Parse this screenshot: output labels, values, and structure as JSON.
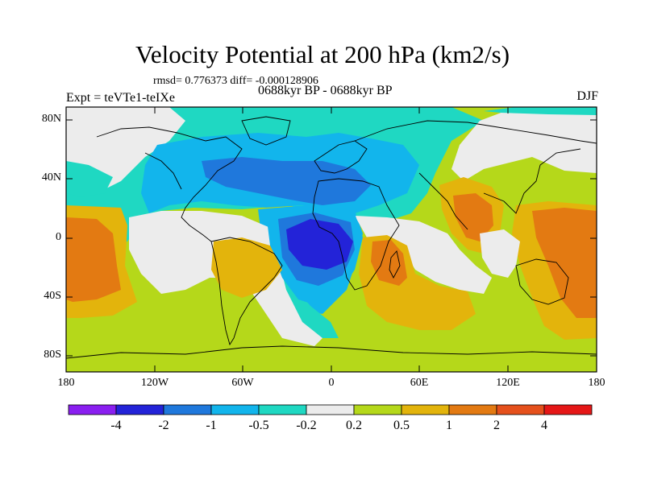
{
  "figure": {
    "title": "Velocity Potential at 200 hPa (km2/s)",
    "stats_line": "rmsd= 0.776373 diff= -0.000128906",
    "period_line": "0688kyr BP - 0688kyr BP",
    "experiment": "Expt = teVTe1-teIXe",
    "season": "DJF"
  },
  "axes": {
    "lat_labels": [
      "80N",
      "40N",
      "0",
      "40S",
      "80S"
    ],
    "lon_labels": [
      "180",
      "120W",
      "60W",
      "0",
      "60E",
      "120E",
      "180"
    ]
  },
  "colorbar": {
    "labels": [
      "-4",
      "-2",
      "-1",
      "-0.5",
      "-0.2",
      "0.2",
      "0.5",
      "1",
      "2",
      "4"
    ],
    "colors": [
      "#8a1ff0",
      "#2323d8",
      "#1f78dc",
      "#12b5ec",
      "#1fd8c2",
      "#ececec",
      "#b5d81a",
      "#e3b40c",
      "#e37a12",
      "#e5501c",
      "#e51717"
    ]
  },
  "palette": {
    "gray": "#ececec",
    "cyan": "#1fd8c2",
    "lightblue": "#12b5ec",
    "midblue": "#1f78dc",
    "darkblue": "#2323d8",
    "lime": "#b5d81a",
    "gold": "#e3b40c",
    "orange": "#e37a12"
  }
}
